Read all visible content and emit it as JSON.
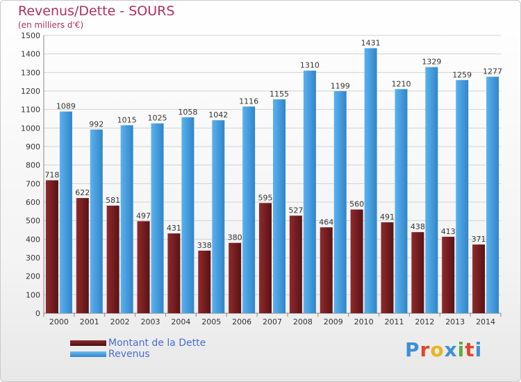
{
  "chart_data": {
    "type": "bar",
    "title": "Revenus/Dette - SOURS",
    "subtitle": "(en milliers d'€)",
    "categories": [
      "2000",
      "2001",
      "2002",
      "2003",
      "2004",
      "2005",
      "2006",
      "2007",
      "2008",
      "2009",
      "2010",
      "2011",
      "2012",
      "2013",
      "2014"
    ],
    "series": [
      {
        "name": "Montant de la Dette",
        "color": "#7a1f22",
        "values": [
          718,
          622,
          581,
          497,
          431,
          338,
          380,
          595,
          527,
          464,
          560,
          491,
          438,
          413,
          371
        ]
      },
      {
        "name": "Revenus",
        "color": "#4ba3e3",
        "values": [
          1089,
          992,
          1015,
          1025,
          1058,
          1042,
          1116,
          1155,
          1310,
          1199,
          1431,
          1210,
          1329,
          1259,
          1277
        ]
      }
    ],
    "ylim": [
      0,
      1500
    ],
    "yticks": [
      0,
      100,
      200,
      300,
      400,
      500,
      600,
      700,
      800,
      900,
      1000,
      1100,
      1200,
      1300,
      1400,
      1500
    ],
    "grid": true,
    "legend_position": "bottom-left"
  },
  "logo": {
    "text": "Proxiti"
  }
}
